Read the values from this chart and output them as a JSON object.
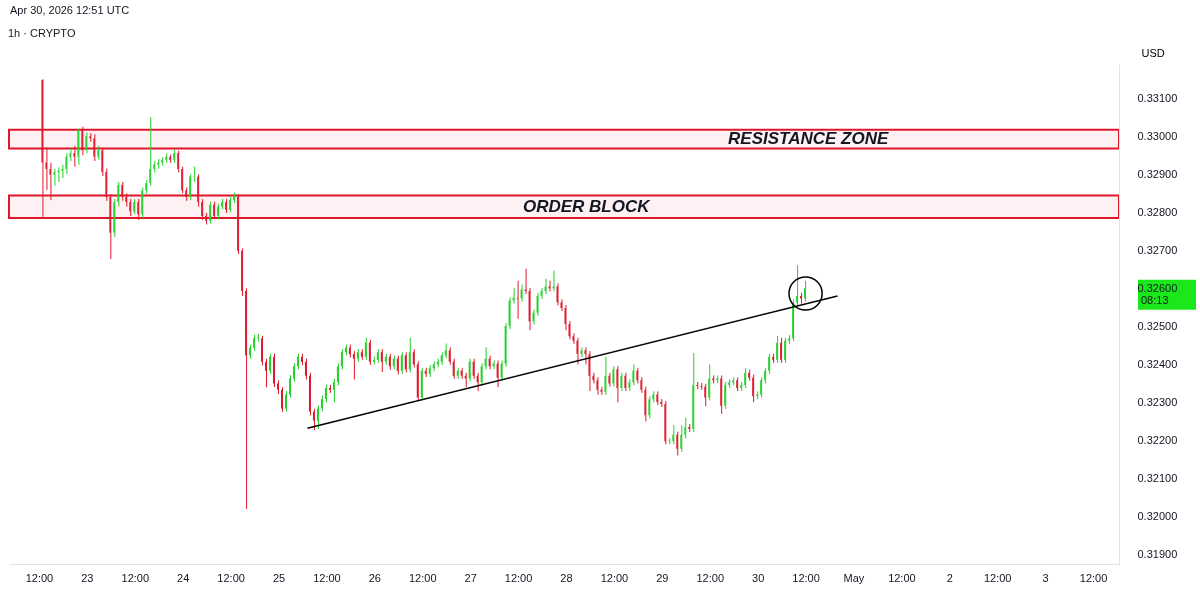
{
  "chart_data": {
    "type": "candlestick",
    "title": "1h · CRYPTO",
    "ylabel": "USD",
    "x": [
      "2026-04-22T13:00",
      "2026-04-22T14:00",
      "2026-04-22T15:00",
      "2026-04-22T16:00",
      "2026-04-22T17:00",
      "2026-04-22T18:00",
      "2026-04-22T19:00",
      "2026-04-22T20:00",
      "2026-04-22T21:00",
      "2026-04-22T22:00",
      "2026-04-22T23:00",
      "2026-04-23T00:00",
      "2026-04-23T01:00",
      "2026-04-23T02:00",
      "2026-04-23T03:00",
      "2026-04-23T04:00",
      "2026-04-23T05:00",
      "2026-04-23T06:00",
      "2026-04-23T07:00",
      "2026-04-23T08:00",
      "2026-04-23T09:00",
      "2026-04-23T10:00",
      "2026-04-23T11:00",
      "2026-04-23T12:00",
      "2026-04-23T13:00",
      "2026-04-23T14:00",
      "2026-04-23T15:00",
      "2026-04-23T16:00",
      "2026-04-23T17:00",
      "2026-04-23T18:00",
      "2026-04-23T19:00",
      "2026-04-23T20:00",
      "2026-04-23T21:00",
      "2026-04-23T22:00",
      "2026-04-23T23:00",
      "2026-04-24T00:00",
      "2026-04-24T01:00",
      "2026-04-24T02:00",
      "2026-04-24T03:00",
      "2026-04-24T04:00",
      "2026-04-24T05:00",
      "2026-04-24T06:00",
      "2026-04-24T07:00",
      "2026-04-24T08:00",
      "2026-04-24T09:00",
      "2026-04-24T10:00",
      "2026-04-24T11:00",
      "2026-04-24T12:00",
      "2026-04-24T13:00",
      "2026-04-24T14:00",
      "2026-04-24T15:00",
      "2026-04-24T16:00",
      "2026-04-24T17:00",
      "2026-04-24T18:00",
      "2026-04-24T19:00",
      "2026-04-24T20:00",
      "2026-04-24T21:00",
      "2026-04-24T22:00",
      "2026-04-24T23:00",
      "2026-04-25T00:00",
      "2026-04-25T01:00",
      "2026-04-25T02:00",
      "2026-04-25T03:00",
      "2026-04-25T04:00",
      "2026-04-25T05:00",
      "2026-04-25T06:00",
      "2026-04-25T07:00",
      "2026-04-25T08:00",
      "2026-04-25T09:00",
      "2026-04-25T10:00",
      "2026-04-25T11:00",
      "2026-04-25T12:00",
      "2026-04-25T13:00",
      "2026-04-25T14:00",
      "2026-04-25T15:00",
      "2026-04-25T16:00",
      "2026-04-25T17:00",
      "2026-04-25T18:00",
      "2026-04-25T19:00",
      "2026-04-25T20:00",
      "2026-04-25T21:00",
      "2026-04-25T22:00",
      "2026-04-25T23:00",
      "2026-04-26T00:00",
      "2026-04-26T01:00",
      "2026-04-26T02:00",
      "2026-04-26T03:00",
      "2026-04-26T04:00",
      "2026-04-26T05:00",
      "2026-04-26T06:00",
      "2026-04-26T07:00",
      "2026-04-26T08:00",
      "2026-04-26T09:00",
      "2026-04-26T10:00",
      "2026-04-26T11:00",
      "2026-04-26T12:00",
      "2026-04-26T13:00",
      "2026-04-26T14:00",
      "2026-04-26T15:00",
      "2026-04-26T16:00",
      "2026-04-26T17:00",
      "2026-04-26T18:00",
      "2026-04-26T19:00",
      "2026-04-26T20:00",
      "2026-04-26T21:00",
      "2026-04-26T22:00",
      "2026-04-26T23:00",
      "2026-04-27T00:00",
      "2026-04-27T01:00",
      "2026-04-27T02:00",
      "2026-04-27T03:00",
      "2026-04-27T04:00",
      "2026-04-27T05:00",
      "2026-04-27T06:00",
      "2026-04-27T07:00",
      "2026-04-27T08:00",
      "2026-04-27T09:00",
      "2026-04-27T10:00",
      "2026-04-27T11:00",
      "2026-04-27T12:00",
      "2026-04-27T13:00",
      "2026-04-27T14:00",
      "2026-04-27T15:00",
      "2026-04-27T16:00",
      "2026-04-27T17:00",
      "2026-04-27T18:00",
      "2026-04-27T19:00",
      "2026-04-27T20:00",
      "2026-04-27T21:00",
      "2026-04-27T22:00",
      "2026-04-27T23:00",
      "2026-04-28T00:00",
      "2026-04-28T01:00",
      "2026-04-28T02:00",
      "2026-04-28T03:00",
      "2026-04-28T04:00",
      "2026-04-28T05:00",
      "2026-04-28T06:00",
      "2026-04-28T07:00",
      "2026-04-28T08:00",
      "2026-04-28T09:00",
      "2026-04-28T10:00",
      "2026-04-28T11:00",
      "2026-04-28T12:00",
      "2026-04-28T13:00",
      "2026-04-28T14:00",
      "2026-04-28T15:00",
      "2026-04-28T16:00",
      "2026-04-28T17:00",
      "2026-04-28T18:00",
      "2026-04-28T19:00",
      "2026-04-28T20:00",
      "2026-04-28T21:00",
      "2026-04-28T22:00",
      "2026-04-28T23:00",
      "2026-04-29T00:00",
      "2026-04-29T01:00",
      "2026-04-29T02:00",
      "2026-04-29T03:00",
      "2026-04-29T04:00",
      "2026-04-29T05:00",
      "2026-04-29T06:00",
      "2026-04-29T07:00",
      "2026-04-29T08:00",
      "2026-04-29T09:00",
      "2026-04-29T10:00",
      "2026-04-29T11:00",
      "2026-04-29T12:00",
      "2026-04-29T13:00",
      "2026-04-29T14:00",
      "2026-04-29T15:00",
      "2026-04-29T16:00",
      "2026-04-29T17:00",
      "2026-04-29T18:00",
      "2026-04-29T19:00",
      "2026-04-29T20:00",
      "2026-04-29T21:00",
      "2026-04-29T22:00",
      "2026-04-29T23:00",
      "2026-04-30T00:00",
      "2026-04-30T01:00",
      "2026-04-30T02:00",
      "2026-04-30T03:00",
      "2026-04-30T04:00",
      "2026-04-30T05:00",
      "2026-04-30T06:00",
      "2026-04-30T07:00",
      "2026-04-30T08:00",
      "2026-04-30T09:00",
      "2026-04-30T10:00",
      "2026-04-30T11:00",
      "2026-04-30T12:00"
    ],
    "ohlc": [
      [
        0.33148,
        0.3315,
        0.32788,
        0.32931
      ],
      [
        0.32931,
        0.3297,
        0.32859,
        0.32914
      ],
      [
        0.32914,
        0.3293,
        0.32832,
        0.32899
      ],
      [
        0.32899,
        0.32914,
        0.3287,
        0.32906
      ],
      [
        0.32906,
        0.32918,
        0.3288,
        0.32909
      ],
      [
        0.32909,
        0.32925,
        0.3289,
        0.32914
      ],
      [
        0.32914,
        0.32955,
        0.329,
        0.32946
      ],
      [
        0.32946,
        0.32968,
        0.32935,
        0.32956
      ],
      [
        0.32956,
        0.32975,
        0.3292,
        0.32946
      ],
      [
        0.32946,
        0.3302,
        0.32925,
        0.33017
      ],
      [
        0.33017,
        0.33025,
        0.3295,
        0.32963
      ],
      [
        0.32963,
        0.3301,
        0.32955,
        0.33
      ],
      [
        0.33,
        0.33008,
        0.32985,
        0.32995
      ],
      [
        0.32995,
        0.33005,
        0.32935,
        0.32946
      ],
      [
        0.32946,
        0.32975,
        0.32938,
        0.32963
      ],
      [
        0.32963,
        0.3297,
        0.32895,
        0.32906
      ],
      [
        0.32906,
        0.32915,
        0.3283,
        0.3284
      ],
      [
        0.3284,
        0.32848,
        0.32677,
        0.32746
      ],
      [
        0.32746,
        0.32835,
        0.32735,
        0.32827
      ],
      [
        0.32827,
        0.3288,
        0.32815,
        0.32872
      ],
      [
        0.32872,
        0.3288,
        0.3283,
        0.3284
      ],
      [
        0.3284,
        0.3285,
        0.32815,
        0.32827
      ],
      [
        0.32827,
        0.32835,
        0.3279,
        0.32802
      ],
      [
        0.32802,
        0.32835,
        0.32795,
        0.32827
      ],
      [
        0.32827,
        0.32835,
        0.3278,
        0.32795
      ],
      [
        0.32795,
        0.32865,
        0.32785,
        0.32857
      ],
      [
        0.32857,
        0.32885,
        0.32848,
        0.32877
      ],
      [
        0.32877,
        0.3305,
        0.3287,
        0.32914
      ],
      [
        0.32914,
        0.32935,
        0.32905,
        0.32926
      ],
      [
        0.32926,
        0.3294,
        0.32915,
        0.32931
      ],
      [
        0.32931,
        0.32945,
        0.32922,
        0.32938
      ],
      [
        0.32938,
        0.32955,
        0.3293,
        0.32946
      ],
      [
        0.32946,
        0.32952,
        0.3293,
        0.32938
      ],
      [
        0.32938,
        0.32965,
        0.3293,
        0.32956
      ],
      [
        0.32956,
        0.32962,
        0.32905,
        0.32914
      ],
      [
        0.32914,
        0.3292,
        0.3285,
        0.32857
      ],
      [
        0.32857,
        0.32865,
        0.3283,
        0.3284
      ],
      [
        0.3284,
        0.329,
        0.32832,
        0.32894
      ],
      [
        0.32894,
        0.3292,
        0.3288,
        0.32894
      ],
      [
        0.32894,
        0.329,
        0.32815,
        0.32827
      ],
      [
        0.32827,
        0.32835,
        0.3278,
        0.3279
      ],
      [
        0.3279,
        0.32798,
        0.32768,
        0.32778
      ],
      [
        0.32778,
        0.32828,
        0.3277,
        0.3282
      ],
      [
        0.3282,
        0.32828,
        0.32782,
        0.3279
      ],
      [
        0.3279,
        0.32822,
        0.32782,
        0.32815
      ],
      [
        0.32815,
        0.32835,
        0.32808,
        0.32827
      ],
      [
        0.32827,
        0.32835,
        0.32798,
        0.32807
      ],
      [
        0.32807,
        0.3284,
        0.328,
        0.32832
      ],
      [
        0.32832,
        0.32852,
        0.32825,
        0.3284
      ],
      [
        0.3284,
        0.32848,
        0.3269,
        0.32699
      ],
      [
        0.32699,
        0.32705,
        0.3258,
        0.32593
      ],
      [
        0.32593,
        0.326,
        0.3202,
        0.32424
      ],
      [
        0.32424,
        0.32452,
        0.32415,
        0.32444
      ],
      [
        0.32444,
        0.32478,
        0.32436,
        0.32469
      ],
      [
        0.32469,
        0.3248,
        0.3246,
        0.32469
      ],
      [
        0.32469,
        0.32475,
        0.32398,
        0.32407
      ],
      [
        0.32407,
        0.32415,
        0.3234,
        0.32383
      ],
      [
        0.32383,
        0.32428,
        0.32375,
        0.3242
      ],
      [
        0.3242,
        0.32428,
        0.3234,
        0.3235
      ],
      [
        0.3235,
        0.32358,
        0.32322,
        0.32333
      ],
      [
        0.32333,
        0.3234,
        0.32275,
        0.32284
      ],
      [
        0.32284,
        0.3233,
        0.32276,
        0.32321
      ],
      [
        0.32321,
        0.32372,
        0.32313,
        0.32363
      ],
      [
        0.32363,
        0.32403,
        0.32355,
        0.32395
      ],
      [
        0.32395,
        0.32428,
        0.32387,
        0.3242
      ],
      [
        0.3242,
        0.32428,
        0.32398,
        0.32407
      ],
      [
        0.32407,
        0.32415,
        0.3236,
        0.3237
      ],
      [
        0.3237,
        0.32378,
        0.32266,
        0.32276
      ],
      [
        0.32276,
        0.32283,
        0.32227,
        0.32252
      ],
      [
        0.32252,
        0.32292,
        0.3223,
        0.32284
      ],
      [
        0.32284,
        0.32318,
        0.32276,
        0.32309
      ],
      [
        0.32309,
        0.32346,
        0.323,
        0.32338
      ],
      [
        0.32338,
        0.32346,
        0.32325,
        0.32333
      ],
      [
        0.32333,
        0.32362,
        0.323,
        0.32353
      ],
      [
        0.32353,
        0.32403,
        0.32345,
        0.32395
      ],
      [
        0.32395,
        0.3244,
        0.32387,
        0.32432
      ],
      [
        0.32432,
        0.32452,
        0.32424,
        0.32444
      ],
      [
        0.32444,
        0.32452,
        0.32418,
        0.32427
      ],
      [
        0.32427,
        0.32435,
        0.3236,
        0.32415
      ],
      [
        0.32415,
        0.3244,
        0.32407,
        0.32432
      ],
      [
        0.32432,
        0.3244,
        0.32412,
        0.3242
      ],
      [
        0.3242,
        0.3247,
        0.32412,
        0.32457
      ],
      [
        0.32457,
        0.32465,
        0.32398,
        0.32407
      ],
      [
        0.32407,
        0.3242,
        0.324,
        0.32412
      ],
      [
        0.32412,
        0.3244,
        0.32404,
        0.32432
      ],
      [
        0.32432,
        0.3244,
        0.3238,
        0.32407
      ],
      [
        0.32407,
        0.32428,
        0.32399,
        0.3242
      ],
      [
        0.3242,
        0.32428,
        0.32386,
        0.32395
      ],
      [
        0.32395,
        0.32423,
        0.32387,
        0.32415
      ],
      [
        0.32415,
        0.32423,
        0.32374,
        0.32383
      ],
      [
        0.32383,
        0.32432,
        0.32375,
        0.32424
      ],
      [
        0.32424,
        0.32432,
        0.32379,
        0.32387
      ],
      [
        0.32387,
        0.3247,
        0.32379,
        0.32432
      ],
      [
        0.32432,
        0.3244,
        0.32392,
        0.324
      ],
      [
        0.324,
        0.32408,
        0.32305,
        0.32313
      ],
      [
        0.32313,
        0.32391,
        0.32305,
        0.32383
      ],
      [
        0.32383,
        0.32391,
        0.32367,
        0.32375
      ],
      [
        0.32375,
        0.32398,
        0.32367,
        0.3239
      ],
      [
        0.3239,
        0.32408,
        0.32382,
        0.324
      ],
      [
        0.324,
        0.32415,
        0.32392,
        0.32407
      ],
      [
        0.32407,
        0.32432,
        0.32399,
        0.32424
      ],
      [
        0.32424,
        0.32455,
        0.32416,
        0.32437
      ],
      [
        0.32437,
        0.32445,
        0.32399,
        0.32407
      ],
      [
        0.32407,
        0.32415,
        0.32362,
        0.3237
      ],
      [
        0.3237,
        0.32391,
        0.32362,
        0.32383
      ],
      [
        0.32383,
        0.32391,
        0.32362,
        0.3237
      ],
      [
        0.3237,
        0.32378,
        0.3234,
        0.32363
      ],
      [
        0.32363,
        0.32415,
        0.32355,
        0.32407
      ],
      [
        0.32407,
        0.32415,
        0.32362,
        0.3237
      ],
      [
        0.3237,
        0.32378,
        0.3233,
        0.32353
      ],
      [
        0.32353,
        0.32403,
        0.32345,
        0.32395
      ],
      [
        0.32395,
        0.32445,
        0.32387,
        0.32415
      ],
      [
        0.32415,
        0.32423,
        0.32387,
        0.32395
      ],
      [
        0.32395,
        0.3241,
        0.32387,
        0.32402
      ],
      [
        0.32402,
        0.3241,
        0.3234,
        0.32365
      ],
      [
        0.32365,
        0.3241,
        0.32357,
        0.32402
      ],
      [
        0.32402,
        0.32509,
        0.32394,
        0.32501
      ],
      [
        0.32501,
        0.32576,
        0.32493,
        0.32568
      ],
      [
        0.32568,
        0.326,
        0.3256,
        0.32575
      ],
      [
        0.32575,
        0.3262,
        0.3252,
        0.32573
      ],
      [
        0.32573,
        0.3261,
        0.32565,
        0.32597
      ],
      [
        0.32597,
        0.32652,
        0.32585,
        0.32593
      ],
      [
        0.32593,
        0.32601,
        0.3249,
        0.32513
      ],
      [
        0.32513,
        0.32544,
        0.32505,
        0.32536
      ],
      [
        0.32536,
        0.32588,
        0.32528,
        0.3258
      ],
      [
        0.3258,
        0.32601,
        0.32572,
        0.32593
      ],
      [
        0.32593,
        0.32625,
        0.32585,
        0.32605
      ],
      [
        0.32605,
        0.3262,
        0.32592,
        0.326
      ],
      [
        0.326,
        0.32647,
        0.32592,
        0.32605
      ],
      [
        0.32605,
        0.32613,
        0.32555,
        0.32563
      ],
      [
        0.32563,
        0.32571,
        0.3254,
        0.32548
      ],
      [
        0.32548,
        0.32556,
        0.3249,
        0.32506
      ],
      [
        0.32506,
        0.32514,
        0.32466,
        0.32474
      ],
      [
        0.32474,
        0.32482,
        0.32454,
        0.32462
      ],
      [
        0.32462,
        0.3247,
        0.324,
        0.32427
      ],
      [
        0.32427,
        0.32445,
        0.32419,
        0.32437
      ],
      [
        0.32437,
        0.32445,
        0.324,
        0.32427
      ],
      [
        0.32427,
        0.32435,
        0.3233,
        0.3237
      ],
      [
        0.3237,
        0.32378,
        0.3235,
        0.32358
      ],
      [
        0.32358,
        0.32366,
        0.3232,
        0.32333
      ],
      [
        0.32333,
        0.32341,
        0.3232,
        0.32328
      ],
      [
        0.32328,
        0.3242,
        0.3232,
        0.3237
      ],
      [
        0.3237,
        0.32378,
        0.32342,
        0.3235
      ],
      [
        0.3235,
        0.32395,
        0.32342,
        0.32387
      ],
      [
        0.32387,
        0.32395,
        0.323,
        0.32338
      ],
      [
        0.32338,
        0.32378,
        0.3233,
        0.3237
      ],
      [
        0.3237,
        0.32378,
        0.3233,
        0.32338
      ],
      [
        0.32338,
        0.32361,
        0.3233,
        0.32353
      ],
      [
        0.32353,
        0.324,
        0.32345,
        0.32383
      ],
      [
        0.32383,
        0.32391,
        0.3235,
        0.32358
      ],
      [
        0.32358,
        0.32366,
        0.32325,
        0.32333
      ],
      [
        0.32333,
        0.32341,
        0.3225,
        0.32266
      ],
      [
        0.32266,
        0.32316,
        0.32258,
        0.32308
      ],
      [
        0.32308,
        0.32329,
        0.323,
        0.32321
      ],
      [
        0.32321,
        0.32329,
        0.32293,
        0.32301
      ],
      [
        0.32301,
        0.32309,
        0.32288,
        0.32296
      ],
      [
        0.32296,
        0.32304,
        0.3219,
        0.32198
      ],
      [
        0.32198,
        0.32206,
        0.3219,
        0.32198
      ],
      [
        0.32198,
        0.3224,
        0.3219,
        0.32215
      ],
      [
        0.32215,
        0.32223,
        0.3216,
        0.32178
      ],
      [
        0.32178,
        0.3224,
        0.3217,
        0.32215
      ],
      [
        0.32215,
        0.3226,
        0.32205,
        0.32235
      ],
      [
        0.32235,
        0.32243,
        0.32222,
        0.3223
      ],
      [
        0.3223,
        0.3243,
        0.32222,
        0.32346
      ],
      [
        0.32346,
        0.32354,
        0.32335,
        0.32343
      ],
      [
        0.32343,
        0.32351,
        0.32333,
        0.32341
      ],
      [
        0.32341,
        0.32349,
        0.3229,
        0.32313
      ],
      [
        0.32313,
        0.324,
        0.32305,
        0.32363
      ],
      [
        0.32363,
        0.32371,
        0.3235,
        0.32358
      ],
      [
        0.32358,
        0.32371,
        0.3235,
        0.32363
      ],
      [
        0.32363,
        0.32371,
        0.3227,
        0.32291
      ],
      [
        0.32291,
        0.32354,
        0.32283,
        0.32346
      ],
      [
        0.32346,
        0.32361,
        0.32338,
        0.32353
      ],
      [
        0.32353,
        0.32366,
        0.32345,
        0.32358
      ],
      [
        0.32358,
        0.32366,
        0.3233,
        0.32338
      ],
      [
        0.32338,
        0.32354,
        0.3233,
        0.32346
      ],
      [
        0.32346,
        0.3239,
        0.32338,
        0.32378
      ],
      [
        0.32378,
        0.32386,
        0.32357,
        0.32365
      ],
      [
        0.32365,
        0.32373,
        0.323,
        0.32316
      ],
      [
        0.32316,
        0.32329,
        0.32308,
        0.32321
      ],
      [
        0.32321,
        0.32366,
        0.32313,
        0.32358
      ],
      [
        0.32358,
        0.32391,
        0.3235,
        0.32383
      ],
      [
        0.32383,
        0.32428,
        0.32375,
        0.3242
      ],
      [
        0.3242,
        0.32428,
        0.32404,
        0.32412
      ],
      [
        0.32412,
        0.32475,
        0.32404,
        0.32457
      ],
      [
        0.32457,
        0.3247,
        0.32404,
        0.32412
      ],
      [
        0.32412,
        0.3247,
        0.32404,
        0.32462
      ],
      [
        0.32462,
        0.32477,
        0.32454,
        0.32469
      ],
      [
        0.32469,
        0.32571,
        0.32461,
        0.32563
      ],
      [
        0.32563,
        0.32661,
        0.32555,
        0.3258
      ],
      [
        0.3258,
        0.32588,
        0.3256,
        0.32573
      ],
      [
        0.32573,
        0.3262,
        0.32565,
        0.326
      ]
    ],
    "series": [
      {
        "type": "line",
        "x": [
          "2026-04-25T07:15",
          "2026-04-30T20:00"
        ],
        "values": [
          0.32232,
          0.3258
        ],
        "color": "#000000"
      }
    ],
    "bands": [
      {
        "axis": "y",
        "from": 0.32968,
        "to": 0.33017,
        "color": "#e0162b",
        "label": "RESISTANCE ZONE"
      },
      {
        "axis": "y",
        "from": 0.32785,
        "to": 0.32844,
        "color": "#e0162b",
        "label": "ORDER BLOCK"
      }
    ],
    "annotations": [
      "Apr 30, 2026 12:51 UTC",
      "08:13"
    ],
    "xlim": [
      "2026-04-22T04:30",
      "2026-05-03T18:30"
    ],
    "xticks": [
      {
        "value": "2026-04-22T12:00",
        "label": "12:00"
      },
      {
        "value": "2026-04-23T00:00",
        "label": "23"
      },
      {
        "value": "2026-04-23T12:00",
        "label": "12:00"
      },
      {
        "value": "2026-04-24T00:00",
        "label": "24"
      },
      {
        "value": "2026-04-24T12:00",
        "label": "12:00"
      },
      {
        "value": "2026-04-25T00:00",
        "label": "25"
      },
      {
        "value": "2026-04-25T12:00",
        "label": "12:00"
      },
      {
        "value": "2026-04-26T00:00",
        "label": "26"
      },
      {
        "value": "2026-04-26T12:00",
        "label": "12:00"
      },
      {
        "value": "2026-04-27T00:00",
        "label": "27"
      },
      {
        "value": "2026-04-27T12:00",
        "label": "12:00"
      },
      {
        "value": "2026-04-28T00:00",
        "label": "28"
      },
      {
        "value": "2026-04-28T12:00",
        "label": "12:00"
      },
      {
        "value": "2026-04-29T00:00",
        "label": "29"
      },
      {
        "value": "2026-04-29T12:00",
        "label": "12:00"
      },
      {
        "value": "2026-04-30T00:00",
        "label": "30"
      },
      {
        "value": "2026-04-30T12:00",
        "label": "12:00"
      },
      {
        "value": "2026-05-01T00:00",
        "label": "May"
      },
      {
        "value": "2026-05-01T12:00",
        "label": "12:00"
      },
      {
        "value": "2026-05-02T00:00",
        "label": "2"
      },
      {
        "value": "2026-05-02T12:00",
        "label": "12:00"
      },
      {
        "value": "2026-05-03T00:00",
        "label": "3"
      },
      {
        "value": "2026-05-03T12:00",
        "label": "12:00"
      }
    ],
    "ylim": [
      0.31875,
      0.3319
    ],
    "yticks": [
      {
        "value": 0.319,
        "label": "0.31900"
      },
      {
        "value": 0.32,
        "label": "0.32000"
      },
      {
        "value": 0.321,
        "label": "0.32100"
      },
      {
        "value": 0.322,
        "label": "0.32200"
      },
      {
        "value": 0.323,
        "label": "0.32300"
      },
      {
        "value": 0.324,
        "label": "0.32400"
      },
      {
        "value": 0.325,
        "label": "0.32500"
      },
      {
        "value": 0.326,
        "label": "0.32600"
      },
      {
        "value": 0.327,
        "label": "0.32700"
      },
      {
        "value": 0.328,
        "label": "0.32800"
      },
      {
        "value": 0.329,
        "label": "0.32900"
      },
      {
        "value": 0.33,
        "label": "0.33000"
      },
      {
        "value": 0.331,
        "label": "0.33100"
      }
    ]
  }
}
